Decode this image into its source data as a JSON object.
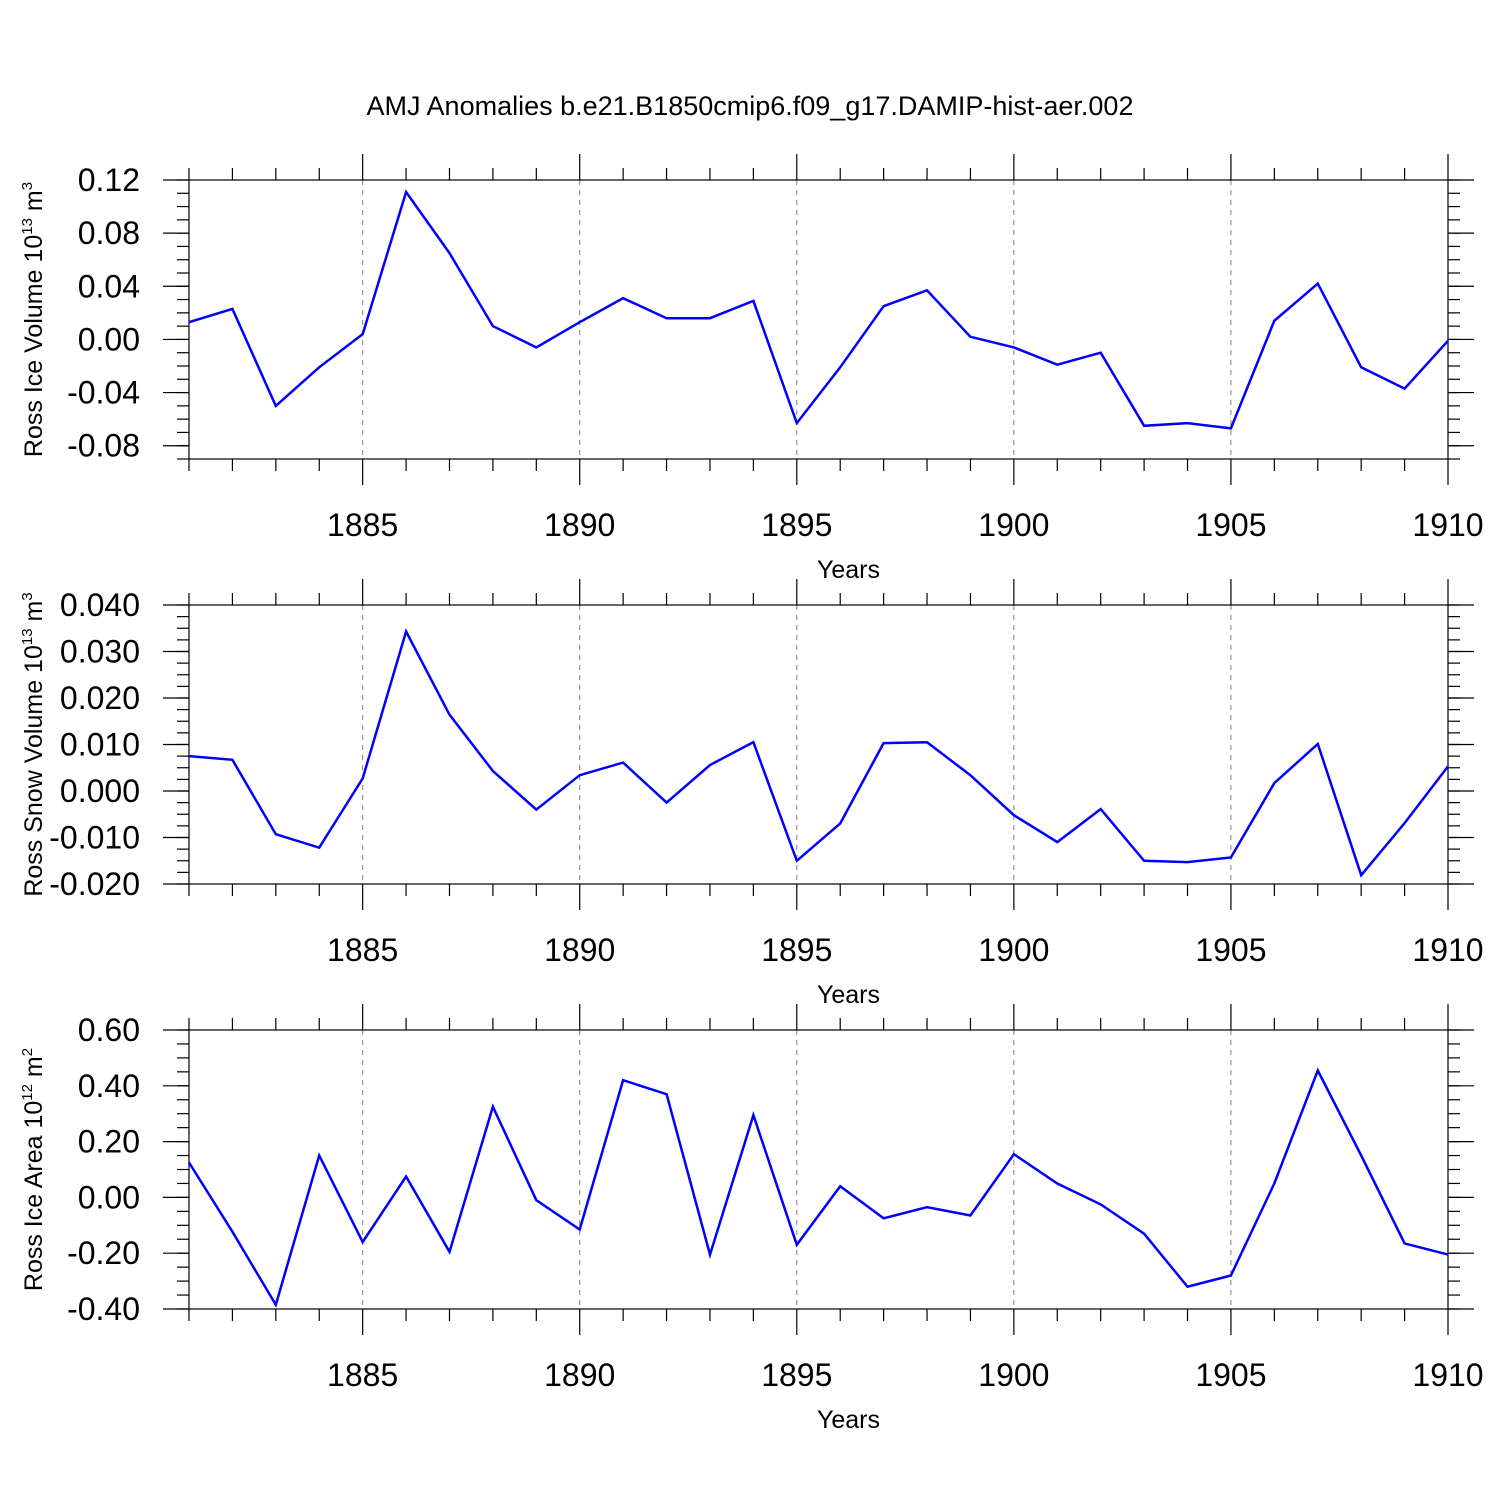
{
  "title": "AMJ Anomalies b.e21.B1850cmip6.f09_g17.DAMIP-hist-aer.002",
  "colors": {
    "series": "#0000ff",
    "axes": "#000000",
    "grid": "#808080"
  },
  "chart_data": [
    {
      "type": "line",
      "ylabel": {
        "base": "Ross Ice Volume 10",
        "exp": "13",
        "unit": " m",
        "unit_exp": "3"
      },
      "xlabel": "Years",
      "xlim": [
        1881,
        1910
      ],
      "ylim": [
        -0.09,
        0.12
      ],
      "xticks": [
        "1885",
        "1890",
        "1895",
        "1900",
        "1905",
        "1910"
      ],
      "yticks": [
        "0.12",
        "0.08",
        "0.04",
        "0.00",
        "-0.04",
        "-0.08"
      ],
      "grid_x": true,
      "x": [
        1881,
        1882,
        1883,
        1884,
        1885,
        1886,
        1887,
        1888,
        1889,
        1890,
        1891,
        1892,
        1893,
        1894,
        1895,
        1896,
        1897,
        1898,
        1899,
        1900,
        1901,
        1902,
        1903,
        1904,
        1905,
        1906,
        1907,
        1908,
        1909,
        1910
      ],
      "series": [
        {
          "values": [
            0.013,
            0.023,
            -0.05,
            -0.021,
            0.004,
            0.111,
            0.065,
            0.01,
            -0.006,
            0.013,
            0.031,
            0.016,
            0.016,
            0.029,
            -0.063,
            -0.021,
            0.025,
            0.037,
            0.002,
            -0.006,
            -0.019,
            -0.01,
            -0.065,
            -0.063,
            -0.067,
            0.014,
            0.042,
            -0.021,
            -0.037,
            -0.001
          ]
        }
      ]
    },
    {
      "type": "line",
      "ylabel": {
        "base": "Ross Snow Volume 10",
        "exp": "13",
        "unit": " m",
        "unit_exp": "3"
      },
      "xlabel": "Years",
      "xlim": [
        1881,
        1910
      ],
      "ylim": [
        -0.02,
        0.04
      ],
      "xticks": [
        "1885",
        "1890",
        "1895",
        "1900",
        "1905",
        "1910"
      ],
      "yticks": [
        "0.040",
        "0.030",
        "0.020",
        "0.010",
        "0.000",
        "-0.010",
        "-0.020"
      ],
      "grid_x": true,
      "x": [
        1881,
        1882,
        1883,
        1884,
        1885,
        1886,
        1887,
        1888,
        1889,
        1890,
        1891,
        1892,
        1893,
        1894,
        1895,
        1896,
        1897,
        1898,
        1899,
        1900,
        1901,
        1902,
        1903,
        1904,
        1905,
        1906,
        1907,
        1908,
        1909,
        1910
      ],
      "series": [
        {
          "values": [
            0.0075,
            0.0067,
            -0.0093,
            -0.0122,
            0.0027,
            0.0343,
            0.0164,
            0.0043,
            -0.004,
            0.0034,
            0.0061,
            -0.0025,
            0.0056,
            0.0105,
            -0.015,
            -0.007,
            0.0103,
            0.0105,
            0.0034,
            -0.0052,
            -0.011,
            -0.0039,
            -0.015,
            -0.0153,
            -0.0143,
            0.0017,
            0.0101,
            -0.0181,
            -0.0069,
            0.0053
          ]
        }
      ]
    },
    {
      "type": "line",
      "ylabel": {
        "base": "Ross Ice Area 10",
        "exp": "12",
        "unit": " m",
        "unit_exp": "2"
      },
      "xlabel": "Years",
      "xlim": [
        1881,
        1910
      ],
      "ylim": [
        -0.4,
        0.6
      ],
      "xticks": [
        "1885",
        "1890",
        "1895",
        "1900",
        "1905",
        "1910"
      ],
      "yticks": [
        "0.60",
        "0.40",
        "0.20",
        "0.00",
        "-0.20",
        "-0.40"
      ],
      "grid_x": true,
      "x": [
        1881,
        1882,
        1883,
        1884,
        1885,
        1886,
        1887,
        1888,
        1889,
        1890,
        1891,
        1892,
        1893,
        1894,
        1895,
        1896,
        1897,
        1898,
        1899,
        1900,
        1901,
        1902,
        1903,
        1904,
        1905,
        1906,
        1907,
        1908,
        1909,
        1910
      ],
      "series": [
        {
          "values": [
            0.125,
            -0.123,
            -0.385,
            0.15,
            -0.16,
            0.075,
            -0.195,
            0.325,
            -0.01,
            -0.115,
            0.42,
            0.37,
            -0.205,
            0.295,
            -0.17,
            0.04,
            -0.075,
            -0.035,
            -0.065,
            0.155,
            0.05,
            -0.025,
            -0.13,
            -0.32,
            -0.28,
            0.05,
            0.455,
            0.15,
            -0.165,
            -0.205
          ]
        }
      ]
    }
  ]
}
